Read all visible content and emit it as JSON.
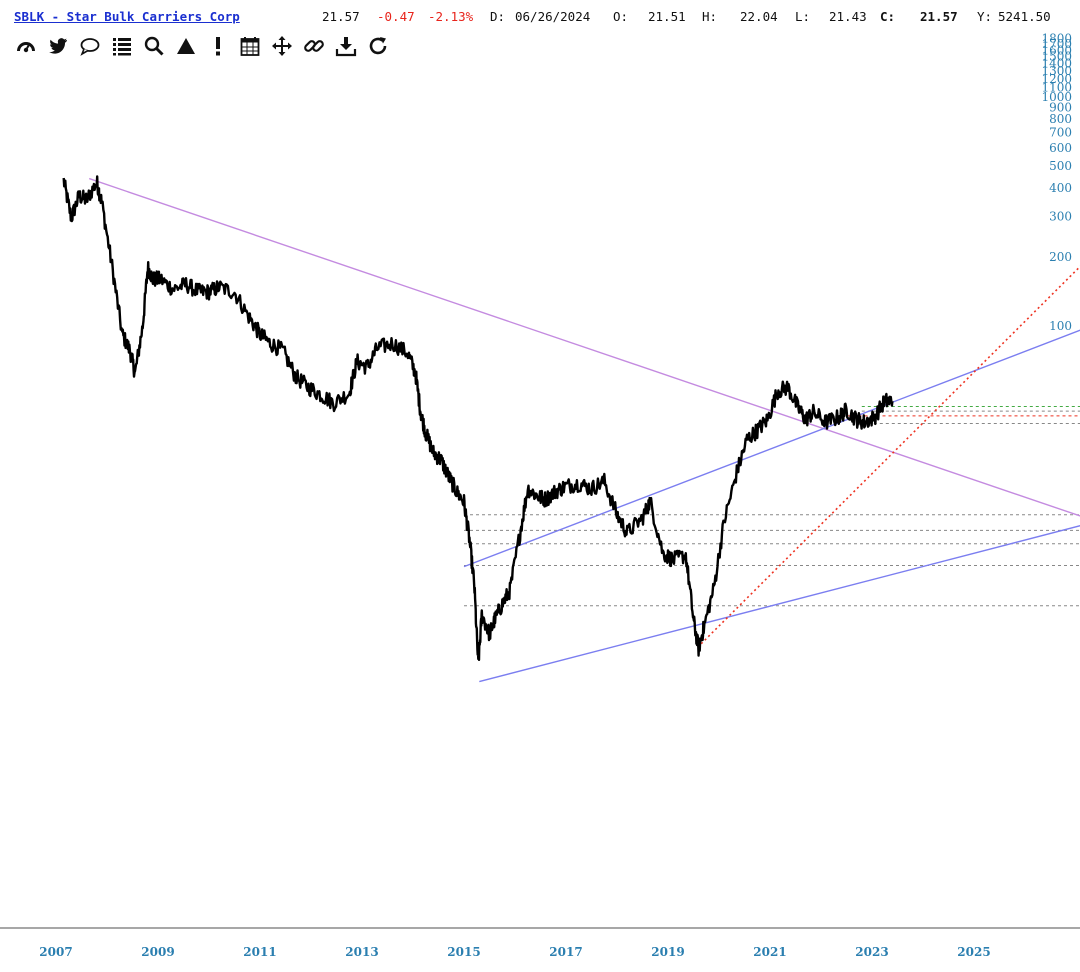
{
  "header": {
    "ticker": "SBLK - Star Bulk Carriers Corp",
    "price": "21.57",
    "change": "-0.47",
    "change_pct": "-2.13%",
    "date_label": "D:",
    "date": "06/26/2024",
    "open_label": "O:",
    "open": "21.51",
    "high_label": "H:",
    "high": "22.04",
    "low_label": "L:",
    "low": "21.43",
    "close_label": "C:",
    "close": "21.57",
    "y_label": "Y:",
    "y": "5241.50"
  },
  "toolbar": [
    {
      "name": "dashboard-icon"
    },
    {
      "name": "twitter-icon"
    },
    {
      "name": "comment-icon"
    },
    {
      "name": "list-icon"
    },
    {
      "name": "search-icon"
    },
    {
      "name": "triangle-icon"
    },
    {
      "name": "alert-icon"
    },
    {
      "name": "calendar-icon"
    },
    {
      "name": "move-icon"
    },
    {
      "name": "link-icon"
    },
    {
      "name": "download-icon"
    },
    {
      "name": "refresh-icon"
    }
  ],
  "colors": {
    "price_line": "#000000",
    "channel": "#7b7ef0",
    "resistance": "#c48be0",
    "trend_dotted": "#ee3322",
    "level_dotted": "#888888",
    "level_green": "#44aa44",
    "axis_text": "#2b7fb0"
  },
  "chart_data": {
    "type": "line",
    "scale": "log",
    "y_ticks": [
      100,
      200,
      300,
      400,
      500,
      600,
      700,
      800,
      900,
      1000,
      1100,
      1200,
      1300,
      1400,
      1500,
      1600,
      1700,
      1800
    ],
    "y_tick_labels": [
      "100",
      "200",
      "300",
      "400",
      "500",
      "600",
      "700",
      "800",
      "900",
      "1000",
      "1100",
      "1200",
      "1300",
      "1400",
      "1500",
      "1600",
      "1700",
      "1800"
    ],
    "x_ticks": [
      "2007",
      "2009",
      "2011",
      "2013",
      "2015",
      "2017",
      "2019",
      "2021",
      "2023",
      "2025"
    ],
    "x_tick_values": [
      2007,
      2009,
      2011,
      2013,
      2015,
      2017,
      2019,
      2021,
      2023,
      2025
    ],
    "xlim": [
      2007,
      2027.5
    ],
    "ylim": [
      2.6,
      1800
    ],
    "series": [
      {
        "x": [
          2007.15,
          2007.3,
          2007.45,
          2007.6,
          2007.8,
          2007.9,
          2008.1,
          2008.3,
          2008.45,
          2008.55,
          2008.7,
          2008.8,
          2008.9,
          2009.05,
          2009.3,
          2009.55,
          2009.8,
          2010.0,
          2010.2,
          2010.5,
          2010.8,
          2011.0,
          2011.2,
          2011.45,
          2011.7,
          2011.95,
          2012.2,
          2012.45,
          2012.75,
          2012.9,
          2013.1,
          2013.3,
          2013.6,
          2013.9,
          2014.05,
          2014.15,
          2014.25,
          2014.4,
          2014.55,
          2014.7,
          2014.85,
          2015.0,
          2015.1,
          2015.2,
          2015.28,
          2015.35,
          2015.5,
          2015.6,
          2015.75,
          2015.9,
          2016.1,
          2016.25,
          2016.45,
          2016.6,
          2016.8,
          2017.0,
          2017.25,
          2017.5,
          2017.75,
          2018.0,
          2018.2,
          2018.5,
          2018.65,
          2018.9,
          2019.1,
          2019.35,
          2019.5,
          2019.6,
          2019.7,
          2019.9,
          2020.1,
          2020.35,
          2020.55,
          2020.75,
          2020.95,
          2021.15,
          2021.35,
          2021.55,
          2021.7,
          2021.85,
          2022.1,
          2022.35,
          2022.5,
          2022.7,
          2022.85,
          2023.05,
          2023.25,
          2023.4
        ],
        "y": [
          432,
          295,
          370,
          355,
          425,
          345,
          182,
          92,
          78,
          62,
          100,
          180,
          160,
          160,
          145,
          152,
          141,
          141,
          148,
          140,
          108,
          92,
          84,
          78,
          60,
          54,
          50,
          46,
          51,
          70,
          66,
          80,
          84,
          76,
          62,
          42,
          34,
          28,
          26,
          22,
          19,
          17,
          12,
          7.5,
          3.3,
          5.5,
          4.5,
          5.2,
          6.1,
          7.0,
          12.5,
          19.5,
          18,
          17.5,
          19,
          20,
          20.5,
          19.5,
          21,
          15,
          12.5,
          14.5,
          17.2,
          10.2,
          9.5,
          10,
          5.2,
          3.9,
          4.8,
          7.2,
          14,
          23,
          32,
          35,
          39,
          52,
          54,
          44,
          39,
          42,
          38,
          40,
          43,
          39,
          38,
          40,
          47,
          47
        ]
      }
    ]
  }
}
